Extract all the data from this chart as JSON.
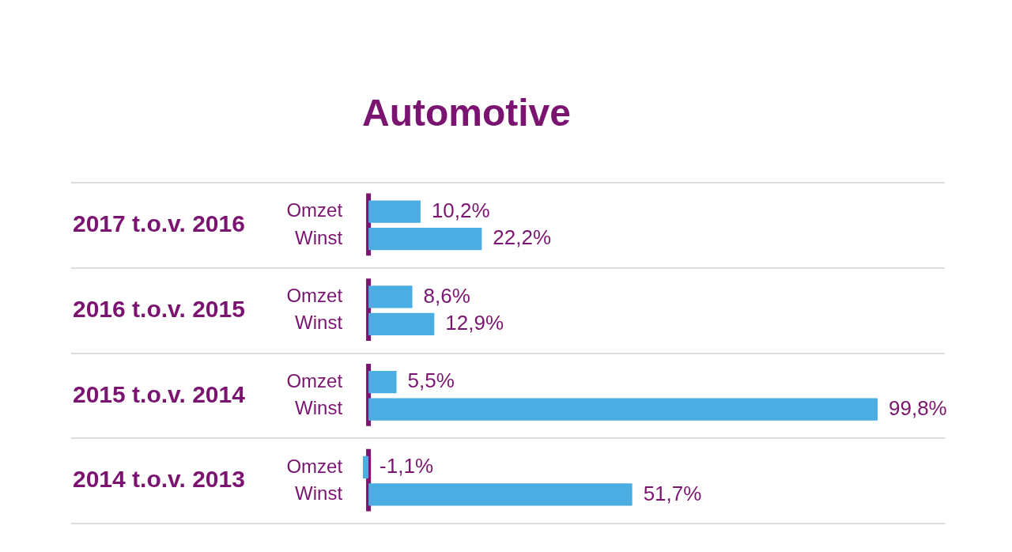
{
  "chart_data": {
    "type": "bar",
    "orientation": "horizontal",
    "title": "Automotive",
    "categories": [
      "2017 t.o.v. 2016",
      "2016 t.o.v. 2015",
      "2015 t.o.v. 2014",
      "2014 t.o.v. 2013"
    ],
    "series": [
      {
        "name": "Omzet",
        "color": "#4aaee2",
        "values": [
          10.2,
          8.6,
          5.5,
          -1.1
        ],
        "value_labels": [
          "10,2%",
          "8,6%",
          "5,5%",
          "-1,1%"
        ]
      },
      {
        "name": "Winst",
        "color": "#4aaee2",
        "values": [
          22.2,
          12.9,
          99.8,
          51.7
        ],
        "value_labels": [
          "22,2%",
          "12,9%",
          "99,8%",
          "51,7%"
        ]
      }
    ],
    "ref_lines": [
      {
        "axis": "x",
        "value": 0,
        "color": "#7a1470"
      }
    ],
    "tick_labels": "y",
    "grid": "y",
    "legend": false
  }
}
